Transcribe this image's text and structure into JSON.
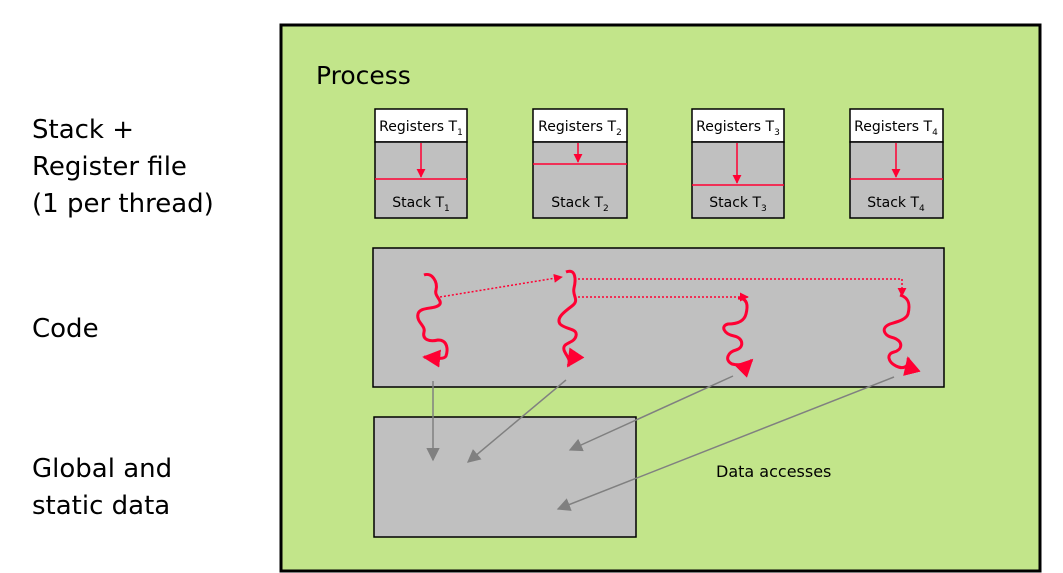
{
  "left_labels": {
    "stack": [
      "Stack +",
      "Register file",
      "(1 per thread)"
    ],
    "code": "Code",
    "data": [
      "Global and",
      "static data"
    ]
  },
  "process": {
    "title": "Process",
    "threads": [
      {
        "registers": "Registers T",
        "stack": "Stack T",
        "sub": "1"
      },
      {
        "registers": "Registers T",
        "stack": "Stack T",
        "sub": "2"
      },
      {
        "registers": "Registers T",
        "stack": "Stack T",
        "sub": "3"
      },
      {
        "registers": "Registers T",
        "stack": "Stack T",
        "sub": "4"
      }
    ],
    "data_accesses_label": "Data accesses"
  },
  "colors": {
    "process_bg": "#c2e58a",
    "box_bg": "#c0c0c0",
    "thread_red": "#ff0033",
    "access_gray": "#808080"
  }
}
